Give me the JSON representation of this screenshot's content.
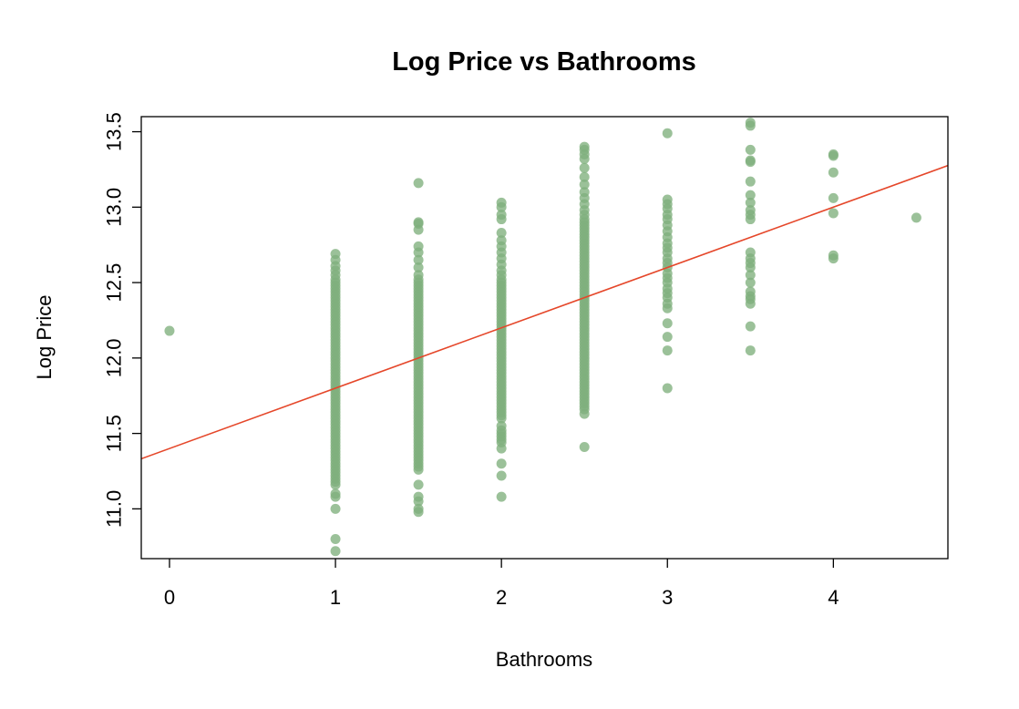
{
  "chart_data": {
    "type": "scatter",
    "title": "Log Price vs Bathrooms",
    "xlabel": "Bathrooms",
    "ylabel": "Log Price",
    "xlim": [
      -0.17,
      4.69
    ],
    "ylim": [
      10.67,
      13.6
    ],
    "x_ticks": [
      0,
      1,
      2,
      3,
      4
    ],
    "y_ticks": [
      11.0,
      11.5,
      12.0,
      12.5,
      13.0,
      13.5
    ],
    "point_color": "#7fb07c",
    "line_color": "#e5472a",
    "grid": false,
    "regression_line": {
      "intercept": 11.4,
      "slope": 0.4
    },
    "points_by_x": [
      {
        "x": 0,
        "y": [
          12.18
        ]
      },
      {
        "x": 1,
        "y": [
          10.72,
          10.8,
          11.0,
          11.08,
          11.1,
          11.16,
          11.18,
          11.2,
          11.22,
          11.24,
          11.26,
          11.28,
          11.3,
          11.32,
          11.34,
          11.36,
          11.38,
          11.4,
          11.42,
          11.44,
          11.46,
          11.48,
          11.5,
          11.52,
          11.54,
          11.56,
          11.58,
          11.6,
          11.62,
          11.64,
          11.66,
          11.68,
          11.7,
          11.72,
          11.74,
          11.76,
          11.78,
          11.8,
          11.82,
          11.84,
          11.86,
          11.88,
          11.9,
          11.92,
          11.94,
          11.96,
          11.98,
          12.0,
          12.02,
          12.04,
          12.06,
          12.08,
          12.1,
          12.12,
          12.14,
          12.16,
          12.18,
          12.2,
          12.22,
          12.24,
          12.26,
          12.28,
          12.3,
          12.32,
          12.34,
          12.36,
          12.38,
          12.4,
          12.42,
          12.44,
          12.46,
          12.48,
          12.5,
          12.52,
          12.55,
          12.58,
          12.61,
          12.65,
          12.69
        ]
      },
      {
        "x": 1.5,
        "y": [
          10.98,
          11.0,
          11.05,
          11.08,
          11.16,
          11.26,
          11.28,
          11.3,
          11.32,
          11.34,
          11.36,
          11.38,
          11.4,
          11.42,
          11.44,
          11.46,
          11.48,
          11.5,
          11.52,
          11.54,
          11.56,
          11.58,
          11.6,
          11.62,
          11.64,
          11.66,
          11.68,
          11.7,
          11.72,
          11.74,
          11.76,
          11.78,
          11.8,
          11.82,
          11.84,
          11.86,
          11.88,
          11.9,
          11.92,
          11.94,
          11.96,
          11.98,
          12.0,
          12.02,
          12.04,
          12.06,
          12.08,
          12.1,
          12.12,
          12.14,
          12.16,
          12.18,
          12.2,
          12.22,
          12.24,
          12.26,
          12.28,
          12.3,
          12.32,
          12.34,
          12.36,
          12.38,
          12.4,
          12.42,
          12.44,
          12.46,
          12.48,
          12.5,
          12.52,
          12.55,
          12.6,
          12.65,
          12.7,
          12.74,
          12.85,
          12.89,
          12.9,
          13.16
        ]
      },
      {
        "x": 2,
        "y": [
          11.08,
          11.22,
          11.3,
          11.4,
          11.44,
          11.46,
          11.48,
          11.5,
          11.52,
          11.55,
          11.6,
          11.62,
          11.64,
          11.66,
          11.68,
          11.7,
          11.72,
          11.74,
          11.76,
          11.78,
          11.8,
          11.82,
          11.84,
          11.86,
          11.88,
          11.9,
          11.92,
          11.94,
          11.96,
          11.98,
          12.0,
          12.02,
          12.04,
          12.06,
          12.08,
          12.1,
          12.12,
          12.14,
          12.16,
          12.18,
          12.2,
          12.22,
          12.24,
          12.26,
          12.28,
          12.3,
          12.32,
          12.34,
          12.36,
          12.38,
          12.4,
          12.42,
          12.44,
          12.46,
          12.48,
          12.5,
          12.52,
          12.55,
          12.58,
          12.62,
          12.66,
          12.7,
          12.74,
          12.78,
          12.83,
          12.92,
          12.95,
          13.0,
          13.03
        ]
      },
      {
        "x": 2.5,
        "y": [
          11.41,
          11.63,
          11.66,
          11.68,
          11.7,
          11.72,
          11.74,
          11.76,
          11.78,
          11.8,
          11.82,
          11.84,
          11.86,
          11.88,
          11.9,
          11.92,
          11.94,
          11.96,
          11.98,
          12.0,
          12.02,
          12.04,
          12.06,
          12.08,
          12.1,
          12.12,
          12.14,
          12.16,
          12.18,
          12.2,
          12.22,
          12.24,
          12.26,
          12.28,
          12.3,
          12.32,
          12.34,
          12.36,
          12.38,
          12.4,
          12.42,
          12.44,
          12.46,
          12.48,
          12.5,
          12.52,
          12.54,
          12.56,
          12.58,
          12.6,
          12.62,
          12.64,
          12.66,
          12.68,
          12.7,
          12.72,
          12.74,
          12.76,
          12.78,
          12.8,
          12.82,
          12.84,
          12.86,
          12.88,
          12.9,
          12.92,
          12.95,
          12.98,
          13.02,
          13.06,
          13.1,
          13.15,
          13.2,
          13.26,
          13.32,
          13.35,
          13.38,
          13.4
        ]
      },
      {
        "x": 3,
        "y": [
          11.8,
          12.05,
          12.14,
          12.23,
          12.33,
          12.36,
          12.4,
          12.43,
          12.46,
          12.5,
          12.53,
          12.56,
          12.6,
          12.63,
          12.66,
          12.7,
          12.73,
          12.76,
          12.8,
          12.84,
          12.88,
          12.92,
          12.95,
          12.99,
          13.02,
          13.05,
          13.49
        ]
      },
      {
        "x": 3.5,
        "y": [
          12.05,
          12.21,
          12.36,
          12.39,
          12.41,
          12.44,
          12.5,
          12.55,
          12.6,
          12.63,
          12.66,
          12.7,
          12.92,
          12.95,
          12.98,
          13.03,
          13.08,
          13.17,
          13.3,
          13.31,
          13.38,
          13.54,
          13.56
        ]
      },
      {
        "x": 4,
        "y": [
          12.66,
          12.68,
          12.96,
          13.06,
          13.23,
          13.34,
          13.35
        ]
      },
      {
        "x": 4.5,
        "y": [
          12.93
        ]
      }
    ]
  }
}
